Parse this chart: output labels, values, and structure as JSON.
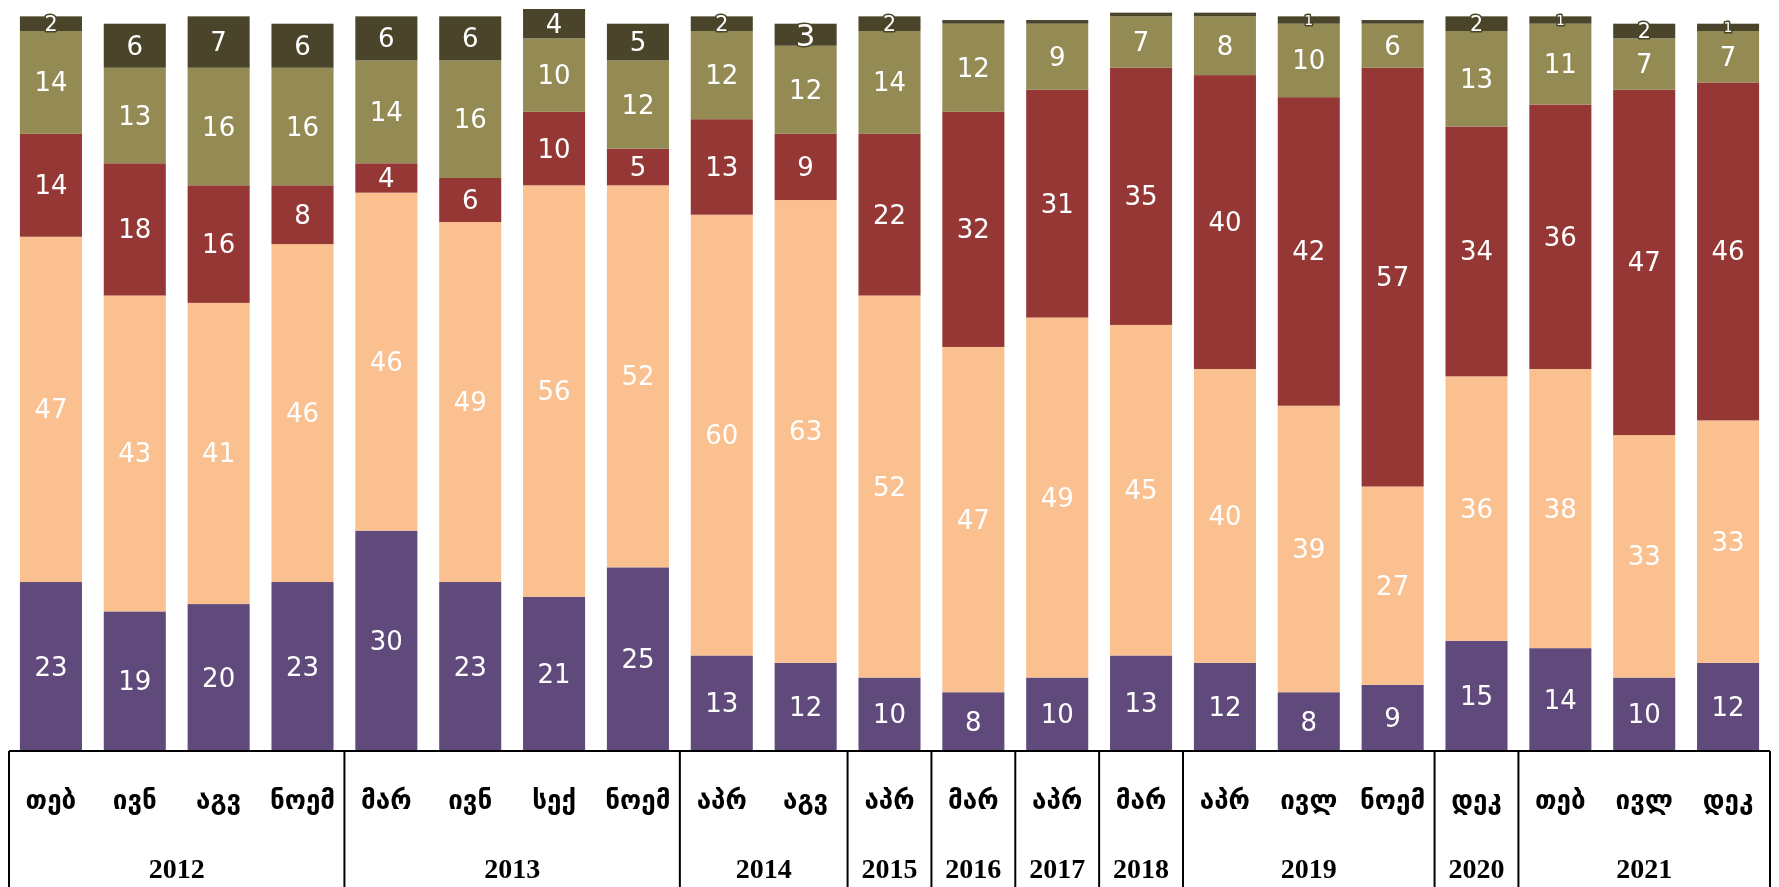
{
  "chart_data": {
    "type": "bar",
    "stacked": true,
    "categories": [
      "თებ",
      "ივნ",
      "აგვ",
      "ნოემ",
      "მარ",
      "ივნ",
      "სექ",
      "ნოემ",
      "აპრ",
      "აგვ",
      "აპრ",
      "მარ",
      "აპრ",
      "მარ",
      "აპრ",
      "ივლ",
      "ნოემ",
      "დეკ",
      "თებ",
      "ივლ",
      "დეკ"
    ],
    "series": [
      {
        "color": "#604a7b",
        "values": [
          23,
          19,
          20,
          23,
          30,
          23,
          21,
          25,
          13,
          12,
          10,
          8,
          10,
          13,
          12,
          8,
          9,
          15,
          14,
          10,
          12
        ],
        "value_labels": [
          "23",
          "19",
          "20",
          "23",
          "30",
          "23",
          "21",
          "25",
          "13",
          "12",
          "10",
          "8",
          "10",
          "13",
          "12",
          "8",
          "9",
          "15",
          "14",
          "10",
          "12"
        ]
      },
      {
        "color": "#fac090",
        "values": [
          47,
          43,
          41,
          46,
          46,
          49,
          56,
          52,
          60,
          63,
          52,
          47,
          49,
          45,
          40,
          39,
          27,
          36,
          38,
          33,
          33
        ],
        "value_labels": [
          "47",
          "43",
          "41",
          "46",
          "46",
          "49",
          "56",
          "52",
          "60",
          "63",
          "52",
          "47",
          "49",
          "45",
          "40",
          "39",
          "27",
          "36",
          "38",
          "33",
          "33"
        ]
      },
      {
        "color": "#953735",
        "values": [
          14,
          18,
          16,
          8,
          4,
          6,
          10,
          5,
          13,
          9,
          22,
          32,
          31,
          35,
          40,
          42,
          57,
          34,
          36,
          47,
          46
        ],
        "value_labels": [
          "14",
          "18",
          "16",
          "8",
          "4",
          "6",
          "10",
          "5",
          "13",
          "9",
          "22",
          "32",
          "31",
          "35",
          "40",
          "42",
          "57",
          "34",
          "36",
          "47",
          "46"
        ]
      },
      {
        "color": "#948a54",
        "values": [
          14,
          13,
          16,
          16,
          14,
          16,
          10,
          12,
          12,
          12,
          14,
          12,
          9,
          7,
          8,
          10,
          6,
          13,
          11,
          7,
          7
        ],
        "value_labels": [
          "14",
          "13",
          "16",
          "16",
          "14",
          "16",
          "10",
          "12",
          "12",
          "12",
          "14",
          "12",
          "9",
          "7",
          "8",
          "10",
          "6",
          "13",
          "11",
          "7",
          "7"
        ]
      },
      {
        "color": "#4a452a",
        "values": [
          2,
          6,
          7,
          6,
          6,
          6,
          4,
          5,
          2,
          3,
          2,
          0.5,
          0.5,
          0.5,
          0.5,
          1,
          0.5,
          2,
          1,
          2,
          1
        ],
        "value_labels": [
          "2",
          "6",
          "7",
          "6",
          "6",
          "6",
          "4",
          "5",
          "2",
          "3",
          "2",
          null,
          null,
          null,
          null,
          "1",
          null,
          "2",
          "1",
          "2",
          "1"
        ]
      }
    ],
    "annotations": [
      "2012",
      "2013",
      "2014",
      "2015",
      "2016",
      "2017",
      "2018",
      "2019",
      "2020",
      "2021"
    ]
  }
}
